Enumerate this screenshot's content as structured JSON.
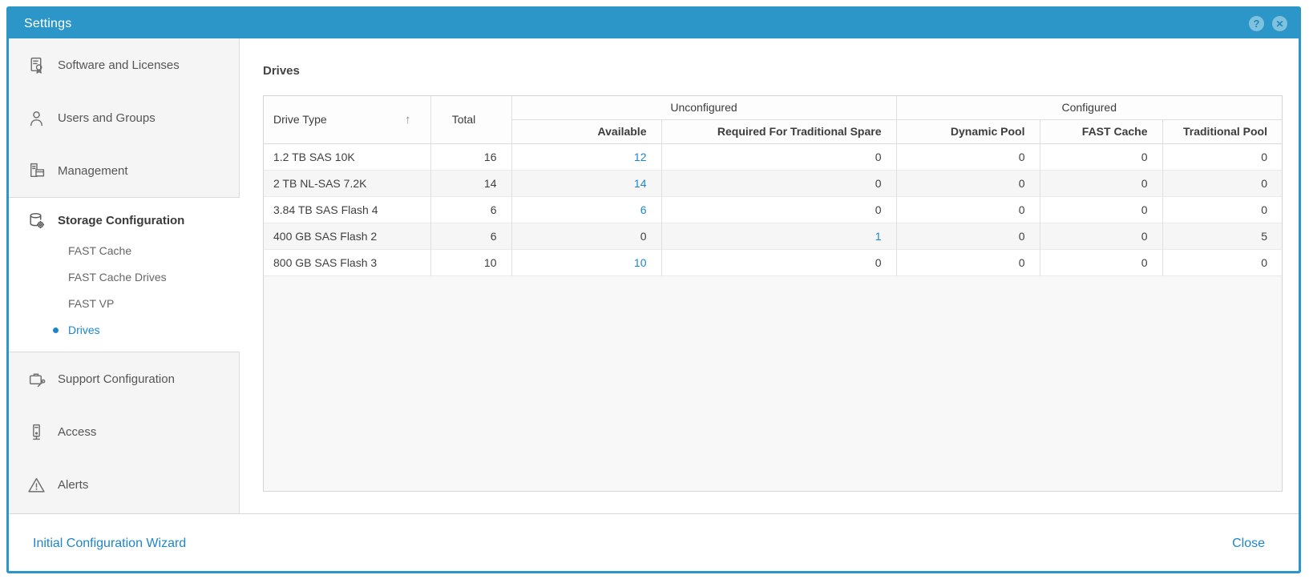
{
  "window": {
    "title": "Settings"
  },
  "titlebar": {
    "help_glyph": "?",
    "close_glyph": "✕"
  },
  "sidebar": {
    "items": [
      {
        "label": "Software and Licenses"
      },
      {
        "label": "Users and Groups"
      },
      {
        "label": "Management"
      },
      {
        "label": "Storage Configuration",
        "selected_section": true
      },
      {
        "label": "Support Configuration"
      },
      {
        "label": "Access"
      },
      {
        "label": "Alerts"
      }
    ],
    "storage_children": [
      {
        "label": "FAST Cache",
        "selected": false
      },
      {
        "label": "FAST Cache Drives",
        "selected": false
      },
      {
        "label": "FAST VP",
        "selected": false
      },
      {
        "label": "Drives",
        "selected": true
      }
    ]
  },
  "main": {
    "heading": "Drives",
    "table": {
      "sort_indicator": "↑",
      "group_headers": [
        {
          "label": "Unconfigured",
          "span": 2
        },
        {
          "label": "Configured",
          "span": 3
        }
      ],
      "headers": {
        "drive_type": "Drive Type",
        "total": "Total",
        "available": "Available",
        "required_for_traditional_spare": "Required For Traditional Spare",
        "dynamic_pool": "Dynamic Pool",
        "fast_cache": "FAST Cache",
        "traditional_pool": "Traditional Pool"
      },
      "field_names": [
        "drive-type",
        "total",
        "available",
        "required-for-traditional-spare",
        "dynamic-pool",
        "fast-cache",
        "traditional-pool"
      ],
      "rows": [
        {
          "cells": [
            {
              "text": "1.2 TB SAS 10K"
            },
            {
              "text": "16"
            },
            {
              "text": "12",
              "link": true
            },
            {
              "text": "0"
            },
            {
              "text": "0"
            },
            {
              "text": "0"
            },
            {
              "text": "0"
            }
          ]
        },
        {
          "cells": [
            {
              "text": "2 TB NL-SAS 7.2K"
            },
            {
              "text": "14"
            },
            {
              "text": "14",
              "link": true
            },
            {
              "text": "0"
            },
            {
              "text": "0"
            },
            {
              "text": "0"
            },
            {
              "text": "0"
            }
          ]
        },
        {
          "cells": [
            {
              "text": "3.84 TB SAS Flash 4"
            },
            {
              "text": "6"
            },
            {
              "text": "6",
              "link": true
            },
            {
              "text": "0"
            },
            {
              "text": "0"
            },
            {
              "text": "0"
            },
            {
              "text": "0"
            }
          ]
        },
        {
          "cells": [
            {
              "text": "400 GB SAS Flash 2"
            },
            {
              "text": "6"
            },
            {
              "text": "0"
            },
            {
              "text": "1",
              "link": true
            },
            {
              "text": "0"
            },
            {
              "text": "0"
            },
            {
              "text": "5"
            }
          ]
        },
        {
          "cells": [
            {
              "text": "800 GB SAS Flash 3"
            },
            {
              "text": "10"
            },
            {
              "text": "10",
              "link": true
            },
            {
              "text": "0"
            },
            {
              "text": "0"
            },
            {
              "text": "0"
            },
            {
              "text": "0"
            }
          ]
        }
      ]
    }
  },
  "footer": {
    "left_link": "Initial Configuration Wizard",
    "right_link": "Close"
  },
  "colors": {
    "accent_blue": "#2D96C8",
    "link_blue": "#1D86CB",
    "sidebar_gray": "#F5F5F5",
    "table_filler_gray": "#F8F8F8"
  }
}
